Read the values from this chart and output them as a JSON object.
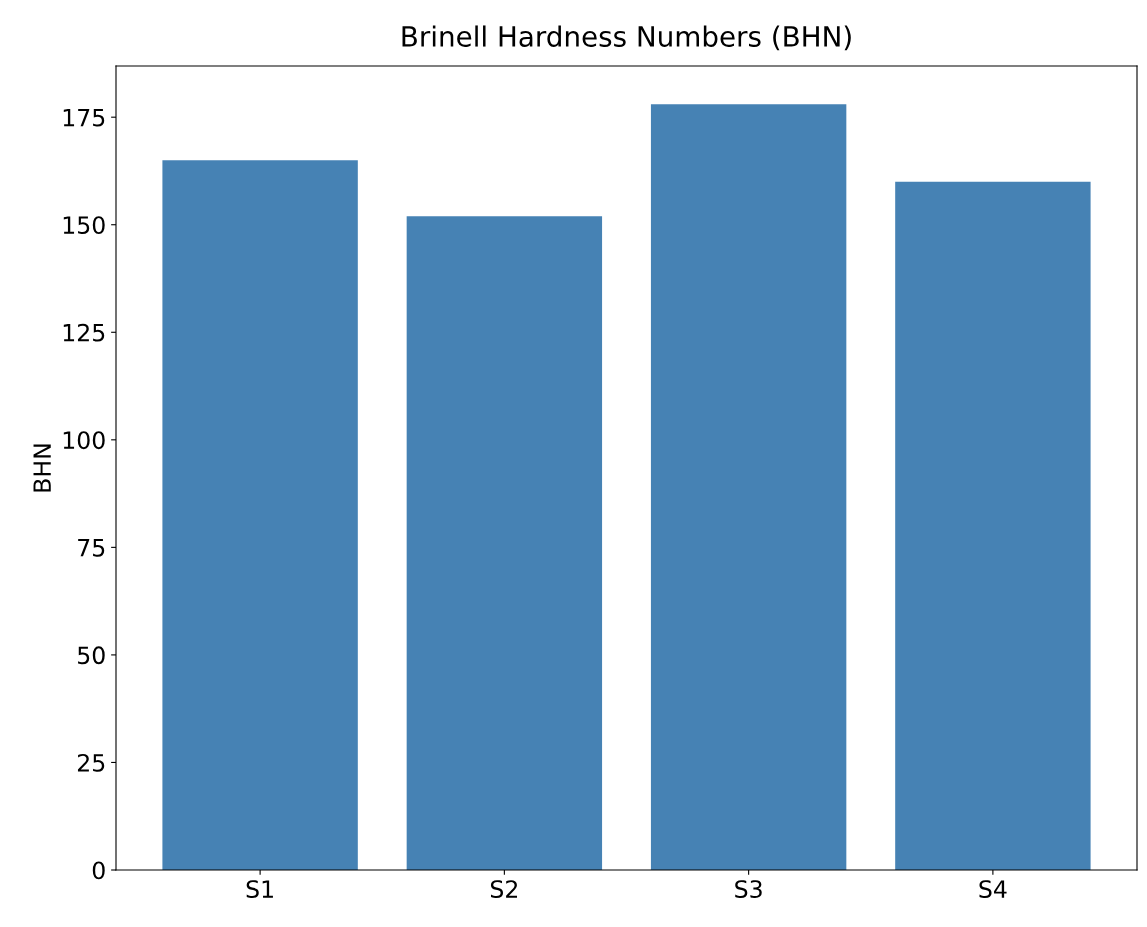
{
  "chart_data": {
    "type": "bar",
    "title": "Brinell Hardness Numbers (BHN)",
    "ylabel": "BHN",
    "categories": [
      "S1",
      "S2",
      "S3",
      "S4"
    ],
    "values": [
      165,
      152,
      178,
      160
    ],
    "color": "#4682b4",
    "ylim": [
      0,
      186.9
    ],
    "yticks": [
      0,
      25,
      50,
      75,
      100,
      125,
      150,
      175
    ],
    "grid": false,
    "legend": false
  }
}
